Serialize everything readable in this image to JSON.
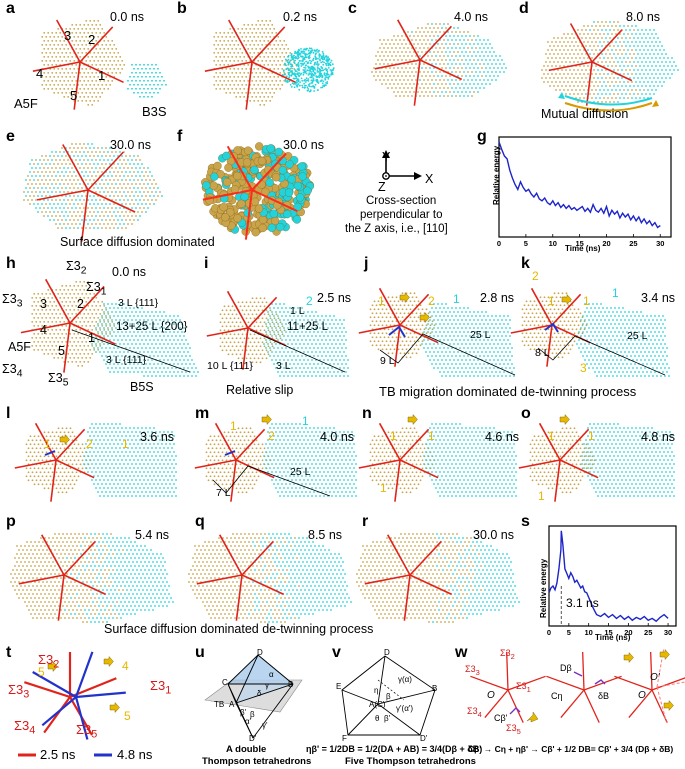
{
  "colors": {
    "gold": "#c9a44a",
    "cyan": "#22d3dc",
    "red": "#e0241b",
    "blue": "#2233cc",
    "yellow": "#e6b800"
  },
  "panels": {
    "a": {
      "letter": "a",
      "time": "0.0 ns"
    },
    "b": {
      "letter": "b",
      "time": "0.2 ns"
    },
    "c": {
      "letter": "c",
      "time": "4.0 ns"
    },
    "d": {
      "letter": "d",
      "time": "8.0 ns"
    },
    "e": {
      "letter": "e",
      "time": "30.0 ns"
    },
    "f": {
      "letter": "f",
      "time": "30.0 ns"
    },
    "g": {
      "letter": "g"
    },
    "h": {
      "letter": "h",
      "time": "0.0 ns"
    },
    "i": {
      "letter": "i",
      "time": "2.5 ns"
    },
    "j": {
      "letter": "j",
      "time": "2.8 ns"
    },
    "k": {
      "letter": "k",
      "time": "3.4 ns"
    },
    "l": {
      "letter": "l",
      "time": "3.6 ns"
    },
    "m": {
      "letter": "m",
      "time": "4.0 ns"
    },
    "n": {
      "letter": "n",
      "time": "4.6 ns"
    },
    "o": {
      "letter": "o",
      "time": "4.8 ns"
    },
    "p": {
      "letter": "p",
      "time": "5.4 ns"
    },
    "q": {
      "letter": "q",
      "time": "8.5 ns"
    },
    "r": {
      "letter": "r",
      "time": "30.0 ns"
    },
    "s": {
      "letter": "s"
    },
    "t": {
      "letter": "t"
    },
    "u": {
      "letter": "u"
    },
    "v": {
      "letter": "v"
    },
    "w": {
      "letter": "w"
    }
  },
  "labels": {
    "a_grains": [
      "3",
      "2",
      "4",
      "1",
      "5"
    ],
    "a_A": "A5F",
    "b_B": "B3S",
    "mutual": "Mutual diffusion",
    "surface1": "Surface  diffusion dominated",
    "axis_y": "Y",
    "axis_z": "Z",
    "axis_x": "X",
    "axis_caption": [
      "Cross-section",
      "perpendicular to",
      "the Z axis, i.e., [110]"
    ],
    "h_sigmas": [
      "Σ3",
      "Σ3",
      "Σ3",
      "Σ3",
      "Σ3"
    ],
    "h_sigma_subs": [
      "2",
      "1",
      "3",
      "4",
      "5"
    ],
    "h_grains": [
      "3",
      "2",
      "4",
      "1",
      "5"
    ],
    "h_A": "A5F",
    "h_B": "B5S",
    "h_3L_top": "3 L {111}",
    "h_mid": "13+25 L {200}",
    "h_3L_bot": "3 L {111}",
    "i_1L": "1 L",
    "i_mid": "11+25 L",
    "i_10L": "10 L {111}",
    "i_3L": "3 L",
    "relative_slip": "Relative slip",
    "tb_migration": "TB migration dominated de-twinning process",
    "j_9L": "9 L",
    "j_25L": "25 L",
    "k_8L": "8 L",
    "k_25L": "25 L",
    "m_7L": "7 L",
    "m_25L": "25 L",
    "surface2": "Surface  diffusion dominated de-twinning process",
    "s_time": "3.1 ns",
    "t_legend_red": "2.5 ns",
    "t_legend_blue": "4.8 ns",
    "u_caption": [
      "A double",
      "Thompson tetrahedrons"
    ],
    "v_caption": [
      "ηβ' = 1/2DB = 1/2(DA + AB) = 3/4(Dβ + δB)",
      "Five Thompson tetrahedrons"
    ],
    "w_caption": "Cβ' → Cη + ηβ' → Cβ' + 1/2 DB= Cβ' + 3/4 (Dβ + δB)",
    "w_labels": {
      "O": "O",
      "O2": "O'",
      "Cb": "Cβ'",
      "Db": "Dβ",
      "Cn": "Cη",
      "dB": "δB"
    },
    "u_letters": {
      "D": "D",
      "C": "C",
      "B": "B",
      "A": "A",
      "Dp": "D'",
      "TB": "TB",
      "a": "α",
      "g": "γ",
      "d": "δ",
      "b": "β",
      "ap": "α'",
      "gp": "γ'",
      "bp": "β'"
    },
    "v_letters": {
      "D": "D",
      "Dp": "D'",
      "E": "E",
      "F": "F",
      "B": "B",
      "C": "C",
      "AC": "A(C)",
      "ga": "γ(α)",
      "gap": "γ'(α')",
      "n": "η",
      "b": "β",
      "bp": "β'",
      "th": "θ"
    }
  },
  "chart_data": [
    {
      "type": "line",
      "id": "g",
      "title": "",
      "xlabel": "Time (ns)",
      "ylabel": "Relative energy",
      "xlim": [
        0,
        32
      ],
      "xticks": [
        0,
        5,
        10,
        15,
        20,
        25,
        30
      ],
      "series": [
        {
          "x": [
            0,
            0.5,
            1,
            1.5,
            2,
            2.5,
            3,
            3.5,
            4,
            4.5,
            5,
            5.5,
            6,
            6.5,
            7,
            7.5,
            8,
            8.5,
            9,
            9.5,
            10,
            10.5,
            11,
            11.5,
            12,
            12.5,
            13,
            13.5,
            14,
            14.5,
            15,
            15.5,
            16,
            16.5,
            17,
            17.5,
            18,
            18.5,
            19,
            19.5,
            20,
            20.5,
            21,
            21.5,
            22,
            22.5,
            23,
            23.5,
            24,
            24.5,
            25,
            25.5,
            26,
            26.5,
            27,
            27.5,
            28,
            28.5,
            29,
            29.5,
            30
          ],
          "y": [
            1.0,
            0.92,
            0.85,
            0.82,
            0.7,
            0.62,
            0.55,
            0.5,
            0.58,
            0.52,
            0.48,
            0.5,
            0.45,
            0.42,
            0.46,
            0.4,
            0.38,
            0.41,
            0.36,
            0.34,
            0.38,
            0.33,
            0.36,
            0.31,
            0.34,
            0.3,
            0.33,
            0.29,
            0.31,
            0.28,
            0.3,
            0.32,
            0.27,
            0.3,
            0.26,
            0.34,
            0.28,
            0.26,
            0.3,
            0.25,
            0.32,
            0.22,
            0.28,
            0.24,
            0.27,
            0.2,
            0.25,
            0.21,
            0.24,
            0.18,
            0.22,
            0.17,
            0.21,
            0.15,
            0.19,
            0.14,
            0.17,
            0.12,
            0.15,
            0.1,
            0.12
          ]
        }
      ]
    },
    {
      "type": "line",
      "id": "s",
      "title": "",
      "xlabel": "Time (ns)",
      "ylabel": "Relative energy",
      "xlim": [
        0,
        32
      ],
      "xticks": [
        0,
        5,
        10,
        15,
        20,
        25,
        30
      ],
      "annotation": "3.1 ns",
      "series": [
        {
          "x": [
            0,
            0.5,
            1,
            1.5,
            2,
            2.5,
            3,
            3.1,
            3.5,
            4,
            4.5,
            5,
            5.5,
            6,
            6.5,
            7,
            7.5,
            8,
            8.5,
            9,
            9.5,
            10,
            10.5,
            11,
            11.5,
            12,
            13,
            14,
            15,
            16,
            17,
            18,
            19,
            20,
            21,
            22,
            23,
            24,
            25,
            26,
            27,
            28,
            29,
            30
          ],
          "y": [
            0.35,
            0.4,
            0.42,
            0.38,
            0.45,
            0.6,
            0.8,
            1.0,
            0.85,
            0.6,
            0.55,
            0.5,
            0.56,
            0.52,
            0.46,
            0.48,
            0.44,
            0.4,
            0.42,
            0.36,
            0.35,
            0.3,
            0.25,
            0.2,
            0.16,
            0.12,
            0.1,
            0.13,
            0.09,
            0.12,
            0.08,
            0.11,
            0.07,
            0.1,
            0.06,
            0.09,
            0.07,
            0.1,
            0.06,
            0.08,
            0.05,
            0.09,
            0.12,
            0.08
          ]
        }
      ]
    }
  ]
}
